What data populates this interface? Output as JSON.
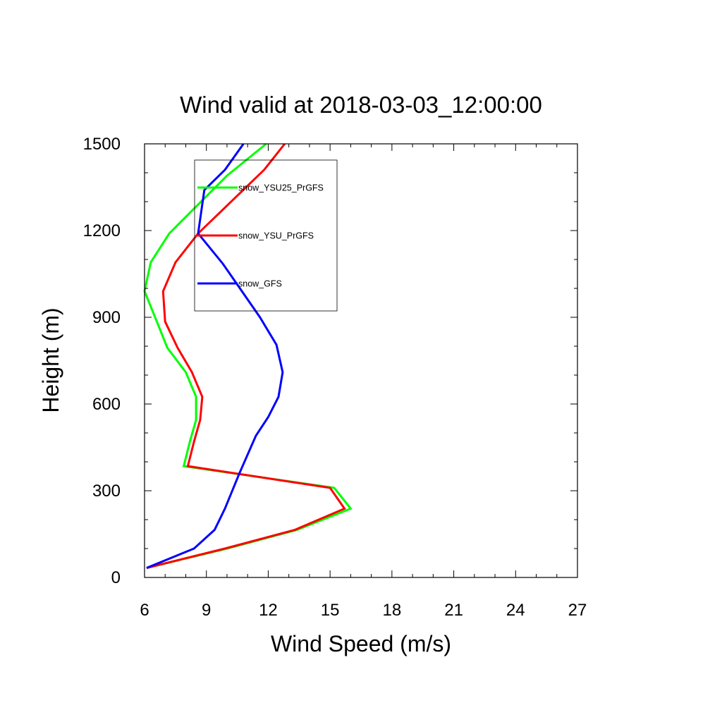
{
  "chart_data": {
    "type": "line",
    "title": "Wind valid at 2018-03-03_12:00:00",
    "xlabel": "Wind Speed (m/s)",
    "ylabel": "Height (m)",
    "xlim": [
      6,
      27
    ],
    "ylim": [
      0,
      1500
    ],
    "x_ticks": [
      "6",
      "9",
      "12",
      "15",
      "18",
      "21",
      "24",
      "27"
    ],
    "y_ticks": [
      "0",
      "300",
      "600",
      "900",
      "1200",
      "1500"
    ],
    "grid": false,
    "legend_position": "upper-left inside plot",
    "series": [
      {
        "name": "snow_YSU25_PrGFS",
        "color": "#00ff00",
        "points": [
          [
            6.1,
            33
          ],
          [
            10.0,
            100
          ],
          [
            13.4,
            165
          ],
          [
            16.0,
            238
          ],
          [
            15.2,
            310
          ],
          [
            7.9,
            385
          ],
          [
            8.2,
            470
          ],
          [
            8.5,
            545
          ],
          [
            8.5,
            625
          ],
          [
            8.0,
            710
          ],
          [
            7.1,
            795
          ],
          [
            6.6,
            885
          ],
          [
            6.0,
            990
          ],
          [
            6.3,
            1090
          ],
          [
            7.2,
            1190
          ],
          [
            10.0,
            1390
          ],
          [
            11.9,
            1500
          ]
        ]
      },
      {
        "name": "snow_YSU_PrGFS",
        "color": "#ff0000",
        "points": [
          [
            6.1,
            33
          ],
          [
            9.9,
            100
          ],
          [
            13.3,
            165
          ],
          [
            15.7,
            238
          ],
          [
            15.0,
            310
          ],
          [
            8.1,
            385
          ],
          [
            8.4,
            470
          ],
          [
            8.7,
            545
          ],
          [
            8.8,
            625
          ],
          [
            8.3,
            710
          ],
          [
            7.6,
            795
          ],
          [
            7.0,
            885
          ],
          [
            6.9,
            990
          ],
          [
            7.5,
            1090
          ],
          [
            8.6,
            1190
          ],
          [
            11.8,
            1410
          ],
          [
            12.8,
            1500
          ]
        ]
      },
      {
        "name": "snow_GFS",
        "color": "#0000ff",
        "points": [
          [
            6.1,
            33
          ],
          [
            8.4,
            100
          ],
          [
            9.4,
            165
          ],
          [
            9.9,
            238
          ],
          [
            10.6,
            360
          ],
          [
            11.4,
            490
          ],
          [
            12.0,
            555
          ],
          [
            12.5,
            625
          ],
          [
            12.7,
            710
          ],
          [
            12.4,
            805
          ],
          [
            11.6,
            900
          ],
          [
            9.8,
            1085
          ],
          [
            8.6,
            1190
          ],
          [
            8.9,
            1340
          ],
          [
            9.9,
            1410
          ],
          [
            10.8,
            1500
          ]
        ]
      }
    ]
  }
}
